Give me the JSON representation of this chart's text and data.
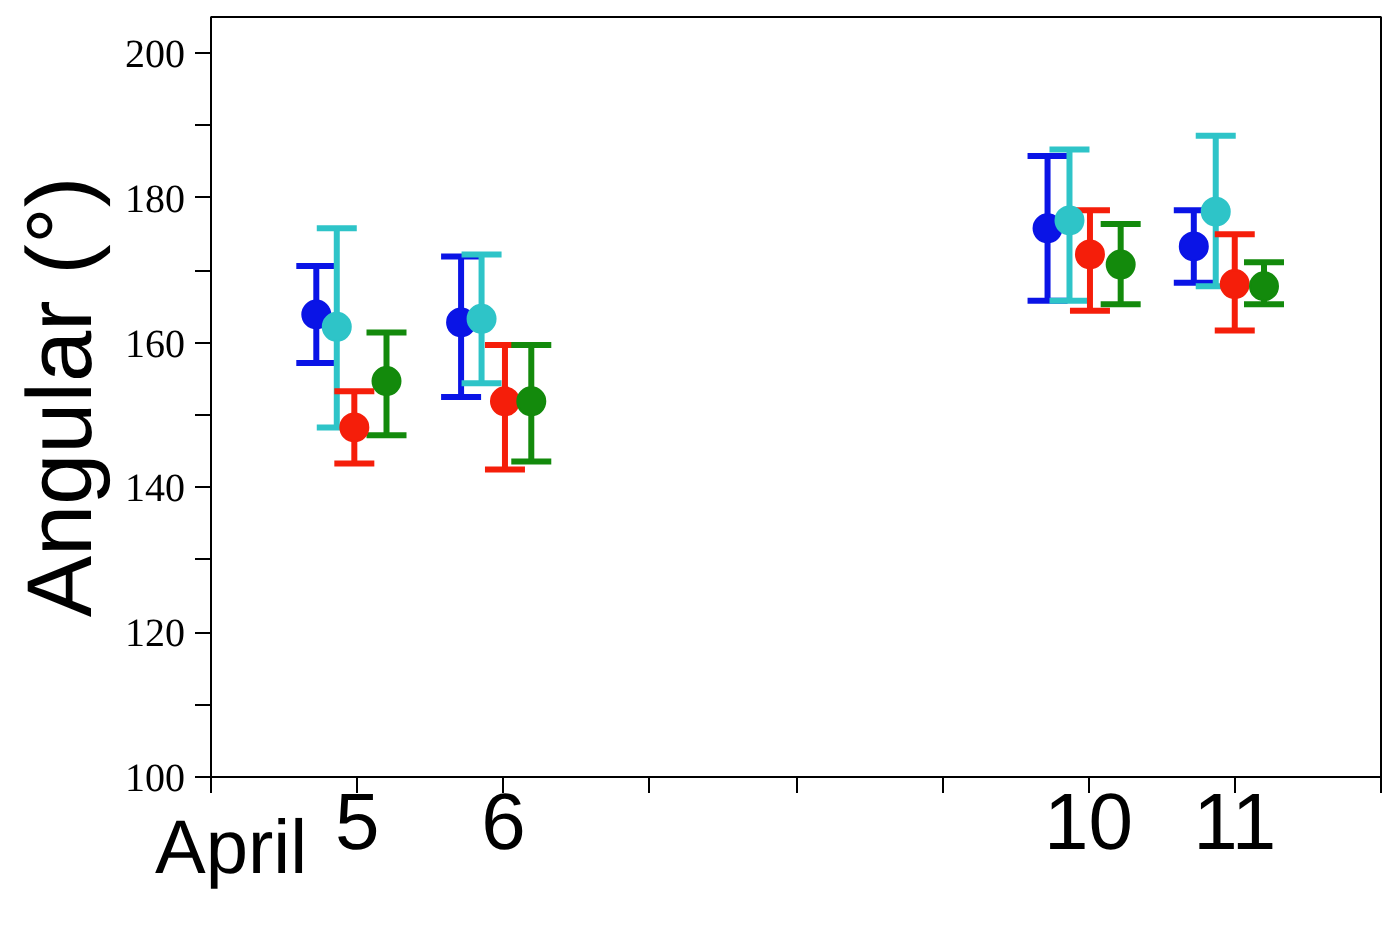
{
  "chart_data": {
    "type": "scatter",
    "ylabel": "Angular (°)",
    "annotations": [
      "April"
    ],
    "marker": "circle",
    "grid": false,
    "xlim": [
      4,
      12
    ],
    "xticks": [
      {
        "value": 4,
        "label": null
      },
      5,
      6,
      {
        "value": 7,
        "label": null
      },
      {
        "value": 8,
        "label": null
      },
      {
        "value": 9,
        "label": null
      },
      10,
      11,
      {
        "value": 12,
        "label": null
      }
    ],
    "ylim": [
      100,
      205
    ],
    "yticks": [
      100,
      {
        "value": 110,
        "label": null
      },
      120,
      {
        "value": 130,
        "label": null
      },
      140,
      {
        "value": 150,
        "label": null
      },
      160,
      {
        "value": 170,
        "label": null
      },
      180,
      {
        "value": 190,
        "label": null
      },
      200
    ],
    "series": [
      {
        "color": "#0a14e6",
        "x": [
          4.72,
          5.71,
          9.72,
          10.72
        ],
        "values": [
          163.9,
          162.8,
          175.8,
          173.3
        ],
        "errors": [
          [
            157.2,
            170.6
          ],
          [
            152.5,
            171.9
          ],
          [
            165.8,
            185.8
          ],
          [
            168.3,
            178.3
          ]
        ]
      },
      {
        "color": "#2ec4c8",
        "x": [
          4.86,
          5.85,
          9.87,
          10.87
        ],
        "values": [
          162.2,
          163.3,
          176.9,
          178.1
        ],
        "errors": [
          [
            148.3,
            175.8
          ],
          [
            154.4,
            172.2
          ],
          [
            165.8,
            186.7
          ],
          [
            167.8,
            188.6
          ]
        ]
      },
      {
        "color": "#f51e0a",
        "x": [
          4.98,
          6.01,
          10.01,
          11.0
        ],
        "values": [
          148.3,
          151.9,
          172.2,
          168.1
        ],
        "errors": [
          [
            143.3,
            153.3
          ],
          [
            142.5,
            159.7
          ],
          [
            164.4,
            178.3
          ],
          [
            161.7,
            175.0
          ]
        ]
      },
      {
        "color": "#138a0c",
        "x": [
          5.2,
          6.19,
          10.22,
          11.2
        ],
        "values": [
          154.7,
          151.9,
          170.8,
          167.8
        ],
        "errors": [
          [
            147.2,
            161.4
          ],
          [
            143.6,
            159.7
          ],
          [
            165.3,
            176.4
          ],
          [
            165.3,
            171.1
          ]
        ]
      }
    ]
  }
}
